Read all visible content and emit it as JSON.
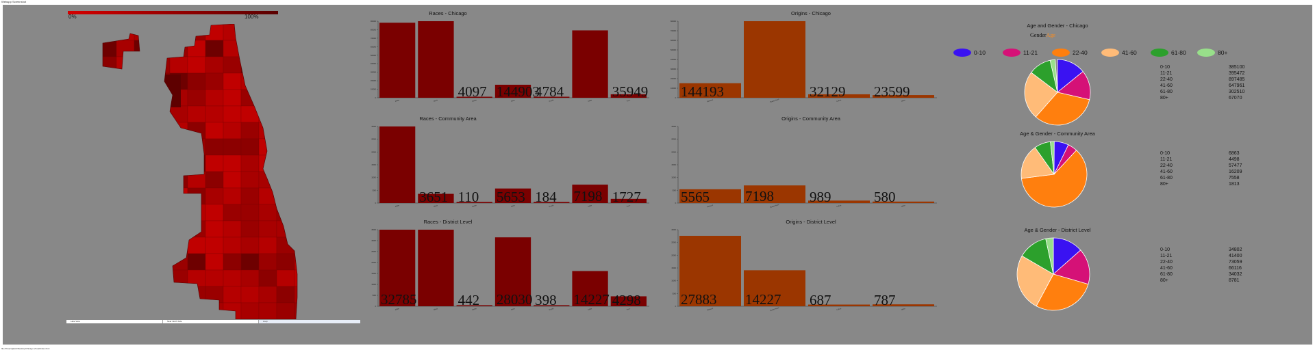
{
  "window": {
    "title": "Webapp Screenshot",
    "footer": "file:///Users/jakob/Desktop/Chicago-Visual/index.html"
  },
  "map": {
    "legend_min": "0%",
    "legend_max": "100%",
    "tabs": [
      "Lake View",
      "Near North Side",
      "Loop"
    ],
    "colors": [
      "#c00000",
      "#b50000",
      "#a80000",
      "#9a0000",
      "#8c0000",
      "#6e0000"
    ]
  },
  "colors": {
    "race": "#7a0000",
    "origin": "#9b3600"
  },
  "bar_charts": [
    {
      "id": "races-chicago",
      "title": "Races - Chicago",
      "color": "#7a0000",
      "rel": [
        0.98,
        1.0,
        0.004,
        0.17,
        0.006,
        0.88,
        0.045
      ],
      "labels": [
        null,
        null,
        "4097",
        "144903",
        "4784",
        null,
        "35949"
      ],
      "yticks": [
        "900000",
        "800000",
        "700000",
        "600000",
        "500000",
        "400000",
        "300000",
        "200000",
        "100000",
        "0"
      ],
      "xticks": [
        "White",
        "Black",
        "Native",
        "Asian",
        "Pacific",
        "Other",
        "Two+"
      ]
    },
    {
      "id": "races-community",
      "title": "Races - Community Area",
      "color": "#7a0000",
      "rel": [
        1.0,
        0.12,
        0.004,
        0.19,
        0.006,
        0.24,
        0.055
      ],
      "labels": [
        null,
        "3651",
        "110",
        "5653",
        "184",
        "7198",
        "1727"
      ],
      "yticks": [
        "30000",
        "25000",
        "20000",
        "15000",
        "10000",
        "5000",
        "0"
      ],
      "xticks": [
        "White",
        "Black",
        "Native",
        "Asian",
        "Pacific",
        "Other",
        "Two+"
      ]
    },
    {
      "id": "races-district",
      "title": "Races - District Level",
      "color": "#7a0000",
      "rel": [
        1.0,
        1.0,
        0.013,
        0.9,
        0.012,
        0.46,
        0.13
      ],
      "labels": [
        "32785",
        null,
        "442",
        "28030",
        "398",
        "14227",
        "4298"
      ],
      "yticks": [
        "35000",
        "30000",
        "25000",
        "20000",
        "15000",
        "10000",
        "5000",
        "0"
      ],
      "xticks": [
        "White",
        "Black",
        "Native",
        "Asian",
        "Pacific",
        "Other",
        "Two+"
      ]
    },
    {
      "id": "origins-chicago",
      "title": "Origins - Chicago",
      "color": "#9b3600",
      "rel": [
        0.19,
        1.0,
        0.045,
        0.035
      ],
      "labels": [
        "144193",
        null,
        "32129",
        "23599"
      ],
      "yticks": [
        "800000",
        "700000",
        "600000",
        "500000",
        "400000",
        "300000",
        "200000",
        "100000",
        "0"
      ],
      "xticks": [
        "Mexican",
        "Puerto Rican",
        "Cuban",
        "Other"
      ]
    },
    {
      "id": "origins-community",
      "title": "Origins - Community Area",
      "color": "#9b3600",
      "rel": [
        0.18,
        0.23,
        0.032,
        0.019
      ],
      "labels": [
        "5565",
        "7198",
        "989",
        "580"
      ],
      "yticks": [
        "30000",
        "25000",
        "20000",
        "15000",
        "10000",
        "5000",
        "0"
      ],
      "xticks": [
        "Mexican",
        "Puerto Rican",
        "Cuban",
        "Other"
      ]
    },
    {
      "id": "origins-district",
      "title": "Origins - District Level",
      "color": "#9b3600",
      "rel": [
        0.92,
        0.47,
        0.022,
        0.025
      ],
      "labels": [
        "27883",
        "14227",
        "687",
        "787"
      ],
      "yticks": [
        "30000",
        "25000",
        "20000",
        "15000",
        "10000",
        "5000",
        "0"
      ],
      "xticks": [
        "Mexican",
        "Puerto Rican",
        "Cuban",
        "Other"
      ]
    }
  ],
  "age": {
    "title": "Age and Gender - Chicago",
    "toggle_gender": "Gender",
    "toggle_age": "Age",
    "legend": [
      {
        "label": "0-10",
        "color": "#3a12f2"
      },
      {
        "label": "11-21",
        "color": "#d51177"
      },
      {
        "label": "22-40",
        "color": "#ff7f0e"
      },
      {
        "label": "41-60",
        "color": "#ffbb78"
      },
      {
        "label": "61-80",
        "color": "#2ca02c"
      },
      {
        "label": "80+",
        "color": "#98df8a"
      }
    ],
    "groups": [
      {
        "title": "",
        "labels": [
          "0-10",
          "11-21",
          "22-40",
          "41-60",
          "61-80",
          "80+"
        ],
        "values": [
          "385100",
          "395472",
          "897485",
          "647961",
          "302510",
          "67070"
        ],
        "shares": [
          0.141,
          0.145,
          0.329,
          0.238,
          0.111,
          0.025
        ]
      },
      {
        "title": "Age & Gender - Community Area",
        "labels": [
          "0-10",
          "11-21",
          "22-40",
          "41-60",
          "61-80",
          "80+"
        ],
        "values": [
          "6863",
          "4498",
          "57477",
          "16209",
          "7558",
          "1813"
        ],
        "shares": [
          0.072,
          0.047,
          0.611,
          0.172,
          0.08,
          0.019
        ]
      },
      {
        "title": "Age & Gender - District Level",
        "labels": [
          "0-10",
          "11-21",
          "22-40",
          "41-60",
          "61-80",
          "80+"
        ],
        "values": [
          "34802",
          "41400",
          "73059",
          "66116",
          "34032",
          "8781"
        ],
        "shares": [
          0.135,
          0.16,
          0.283,
          0.256,
          0.132,
          0.034
        ]
      }
    ]
  }
}
